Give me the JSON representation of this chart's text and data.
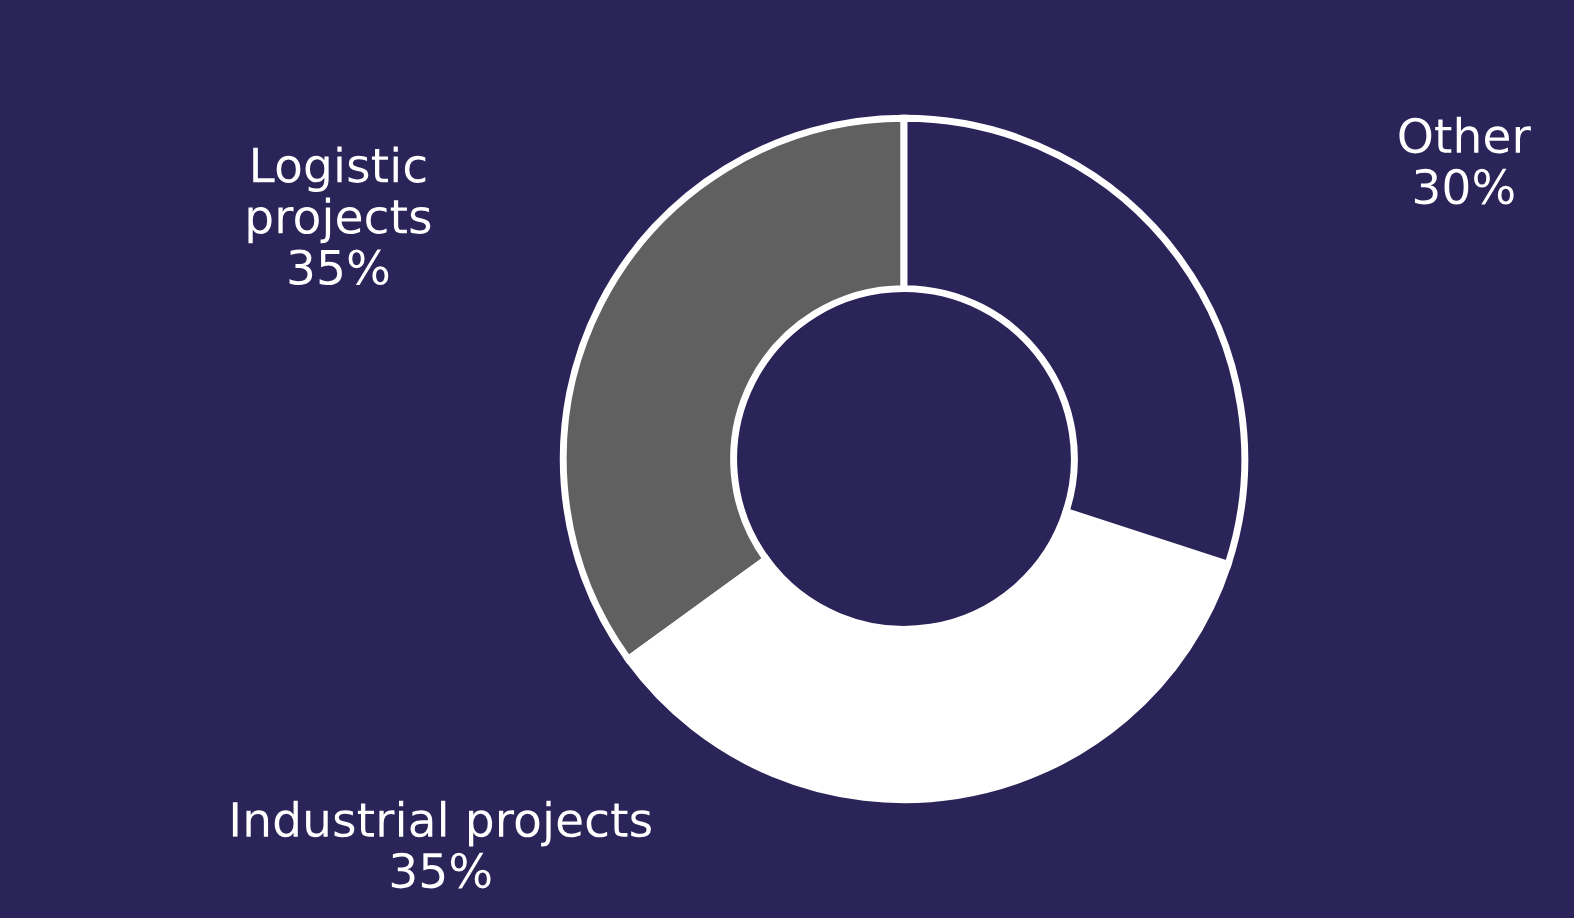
{
  "chart_data": {
    "type": "donut",
    "categories": [
      "Logistic projects",
      "Industrial projects",
      "Other"
    ],
    "values": [
      35,
      35,
      30
    ],
    "value_labels": [
      "35%",
      "35%",
      "30%"
    ],
    "colors": [
      "#606060",
      "#ffffff",
      "#2a2459"
    ],
    "legend": false
  }
}
